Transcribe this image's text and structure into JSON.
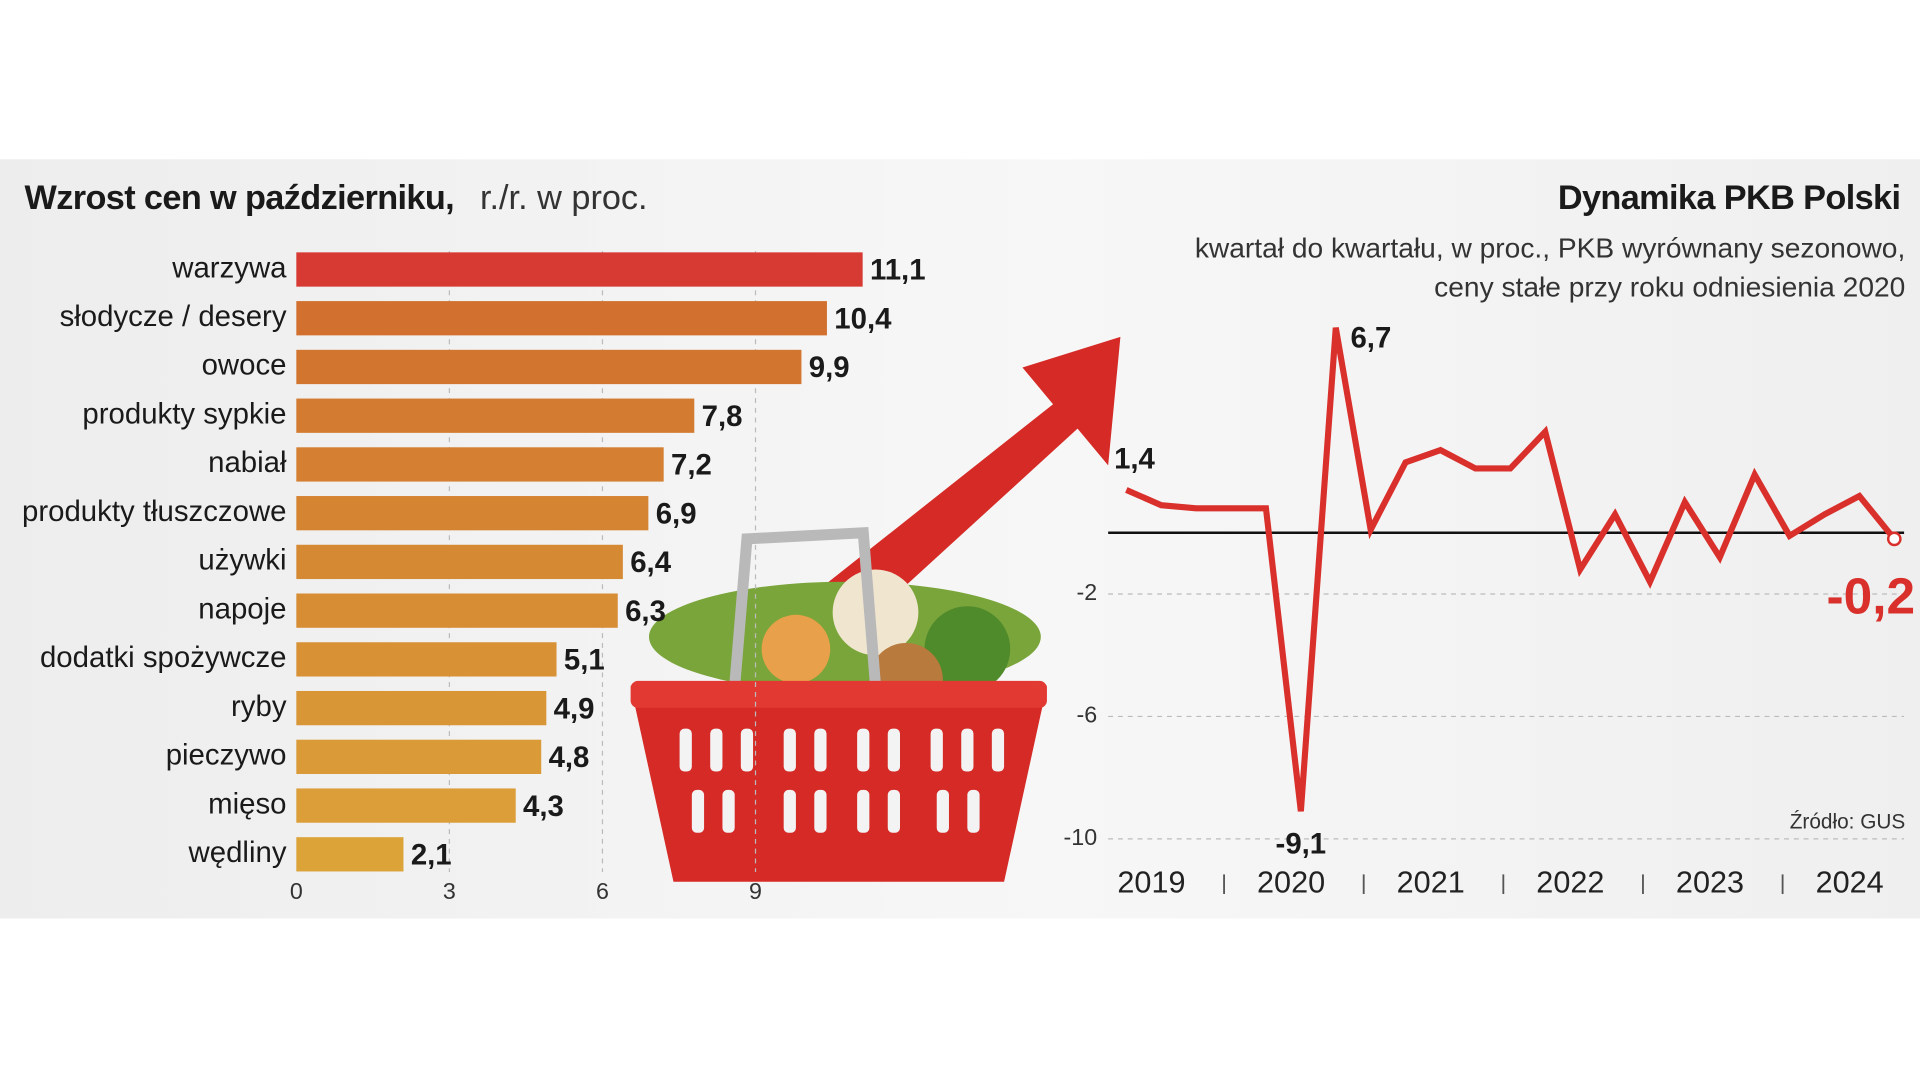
{
  "chart_data": [
    {
      "type": "bar",
      "orientation": "horizontal",
      "title": "Wzrost cen w październiku,",
      "subtitle": "r./r. w proc.",
      "categories": [
        "warzywa",
        "słodycze / desery",
        "owoce",
        "produkty sypkie",
        "nabiał",
        "produkty tłuszczowe",
        "używki",
        "napoje",
        "dodatki spożywcze",
        "ryby",
        "pieczywo",
        "mięso",
        "wędliny"
      ],
      "values": [
        11.1,
        10.4,
        9.9,
        7.8,
        7.2,
        6.9,
        6.4,
        6.3,
        5.1,
        4.9,
        4.8,
        4.3,
        2.1
      ],
      "value_labels": [
        "11,1",
        "10,4",
        "9,9",
        "7,8",
        "7,2",
        "6,9",
        "6,4",
        "6,3",
        "5,1",
        "4,9",
        "4,8",
        "4,3",
        "2,1"
      ],
      "colors": [
        "#d63a33",
        "#d2712f",
        "#d2752f",
        "#d37b30",
        "#d47f31",
        "#d58432",
        "#d68933",
        "#d78d34",
        "#d89235",
        "#d99636",
        "#da9a37",
        "#db9e38",
        "#dca339"
      ],
      "xlim": [
        0,
        12
      ],
      "xticks": [
        0,
        3,
        6,
        9
      ],
      "grid": true
    },
    {
      "type": "line",
      "title": "Dynamika PKB Polski",
      "subtitle": [
        "kwartał do kwartału, w proc., PKB wyrównany sezonowo,",
        "ceny stałe przy roku odniesienia 2020"
      ],
      "source": "Źródło: GUS",
      "x": [
        2019,
        2019.25,
        2019.5,
        2019.75,
        2020,
        2020.25,
        2020.5,
        2020.75,
        2021,
        2021.25,
        2021.5,
        2021.75,
        2022,
        2022.25,
        2022.5,
        2022.75,
        2023,
        2023.25,
        2023.5,
        2023.75,
        2024,
        2024.25,
        2024.5
      ],
      "series": [
        {
          "name": "PKB",
          "color": "#d9302c",
          "values": [
            1.4,
            0.9,
            0.8,
            0.8,
            0.8,
            -9.1,
            6.7,
            0.1,
            2.3,
            2.7,
            2.1,
            2.1,
            3.3,
            -1.2,
            0.6,
            -1.6,
            1.0,
            -0.8,
            1.9,
            -0.1,
            0.6,
            1.2,
            -0.2
          ],
          "value_labels": [
            "1,4",
            null,
            null,
            null,
            null,
            "-9,1",
            "6,7",
            null,
            null,
            null,
            null,
            null,
            null,
            null,
            null,
            null,
            null,
            null,
            null,
            null,
            null,
            null,
            "-0,2"
          ]
        }
      ],
      "xlim": [
        2018.87,
        2024.57
      ],
      "xticks": [
        2019,
        2020,
        2021,
        2022,
        2023,
        2024
      ],
      "ylim": [
        -10.5,
        7.5
      ],
      "yticks": [
        -10,
        -6,
        -2
      ],
      "grid": true
    }
  ]
}
